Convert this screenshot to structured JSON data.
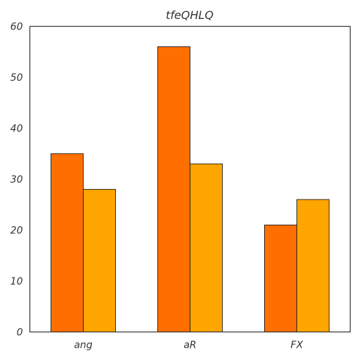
{
  "chart_data": {
    "type": "bar",
    "title": "tfeQHLQ",
    "xlabel": "",
    "ylabel": "",
    "categories": [
      "ang",
      "aR",
      "FX"
    ],
    "series": [
      {
        "values": [
          35,
          56,
          21
        ],
        "color": "#ff6f00"
      },
      {
        "values": [
          28,
          33,
          26
        ],
        "color": "#ffa500"
      }
    ],
    "ylim": [
      0,
      60
    ],
    "yticks": [
      0,
      10,
      20,
      30,
      40,
      50,
      60
    ],
    "grid": false,
    "legend": "none"
  }
}
